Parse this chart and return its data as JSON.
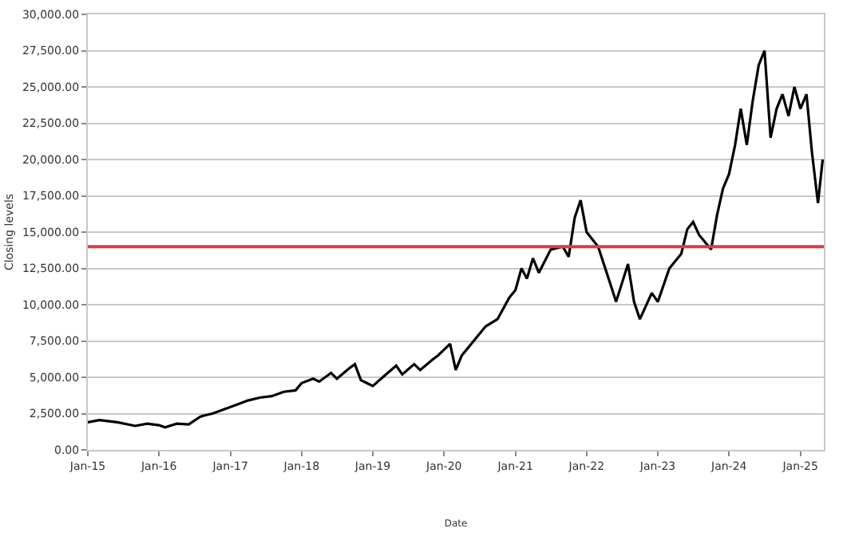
{
  "chart_data": {
    "type": "line",
    "xlabel": "Date",
    "ylabel": "Closing levels",
    "x": [
      "2015-01",
      "2015-03",
      "2015-06",
      "2015-09",
      "2015-11",
      "2016-01",
      "2016-02",
      "2016-04",
      "2016-06",
      "2016-08",
      "2016-10",
      "2016-12",
      "2017-02",
      "2017-04",
      "2017-06",
      "2017-08",
      "2017-10",
      "2017-12",
      "2018-01",
      "2018-03",
      "2018-04",
      "2018-06",
      "2018-07",
      "2018-09",
      "2018-10",
      "2018-11",
      "2018-12",
      "2019-01",
      "2019-03",
      "2019-05",
      "2019-06",
      "2019-08",
      "2019-09",
      "2019-11",
      "2019-12",
      "2020-02",
      "2020-03",
      "2020-04",
      "2020-06",
      "2020-08",
      "2020-10",
      "2020-12",
      "2021-01",
      "2021-02",
      "2021-03",
      "2021-04",
      "2021-05",
      "2021-07",
      "2021-09",
      "2021-10",
      "2021-11",
      "2021-12",
      "2022-01",
      "2022-03",
      "2022-05",
      "2022-06",
      "2022-08",
      "2022-09",
      "2022-10",
      "2022-12",
      "2023-01",
      "2023-03",
      "2023-05",
      "2023-06",
      "2023-07",
      "2023-08",
      "2023-10",
      "2023-11",
      "2023-12",
      "2024-01",
      "2024-02",
      "2024-03",
      "2024-04",
      "2024-05",
      "2024-06",
      "2024-07",
      "2024-08",
      "2024-09",
      "2024-10",
      "2024-11",
      "2024-12",
      "2025-01",
      "2025-02",
      "2025-03",
      "2025-04",
      "2025-04-25"
    ],
    "series": [
      {
        "color": "#000000",
        "values": [
          1900,
          2050,
          1900,
          1650,
          1800,
          1700,
          1550,
          1800,
          1750,
          2300,
          2500,
          2800,
          3100,
          3400,
          3600,
          3700,
          4000,
          4100,
          4600,
          4900,
          4700,
          5300,
          4900,
          5600,
          5900,
          4800,
          4600,
          4400,
          5100,
          5800,
          5200,
          5900,
          5500,
          6200,
          6500,
          7300,
          5500,
          6500,
          7500,
          8500,
          9000,
          10500,
          11000,
          12500,
          11800,
          13200,
          12200,
          13800,
          14000,
          13300,
          16000,
          17200,
          15000,
          14000,
          11500,
          10200,
          12800,
          10200,
          9000,
          10800,
          10200,
          12500,
          13500,
          15200,
          15700,
          14800,
          13800,
          16200,
          18000,
          19000,
          21000,
          23500,
          21000,
          24000,
          26500,
          27500,
          21500,
          23500,
          24500,
          23000,
          25000,
          23500,
          24500,
          20500,
          17000,
          20000
        ]
      }
    ],
    "xlim": [
      "2015-01-01",
      "2025-05-01"
    ],
    "xticks": [
      {
        "value": "2015-01-01",
        "label": "Jan-15"
      },
      {
        "value": "2016-01-01",
        "label": "Jan-16"
      },
      {
        "value": "2017-01-01",
        "label": "Jan-17"
      },
      {
        "value": "2018-01-01",
        "label": "Jan-18"
      },
      {
        "value": "2019-01-01",
        "label": "Jan-19"
      },
      {
        "value": "2020-01-01",
        "label": "Jan-20"
      },
      {
        "value": "2021-01-01",
        "label": "Jan-21"
      },
      {
        "value": "2022-01-01",
        "label": "Jan-22"
      },
      {
        "value": "2023-01-01",
        "label": "Jan-23"
      },
      {
        "value": "2024-01-01",
        "label": "Jan-24"
      },
      {
        "value": "2025-01-01",
        "label": "Jan-25"
      }
    ],
    "ylim": [
      0,
      30000
    ],
    "yticks": [
      {
        "value": 0,
        "label": "0.00"
      },
      {
        "value": 2500,
        "label": "2,500.00"
      },
      {
        "value": 5000,
        "label": "5,000.00"
      },
      {
        "value": 7500,
        "label": "7,500.00"
      },
      {
        "value": 10000,
        "label": "10,000.00"
      },
      {
        "value": 12500,
        "label": "12,500.00"
      },
      {
        "value": 15000,
        "label": "15,000.00"
      },
      {
        "value": 17500,
        "label": "17,500.00"
      },
      {
        "value": 20000,
        "label": "20,000.00"
      },
      {
        "value": 22500,
        "label": "22,500.00"
      },
      {
        "value": 25000,
        "label": "25,000.00"
      },
      {
        "value": 27500,
        "label": "27,500.00"
      },
      {
        "value": 30000,
        "label": "30,000.00"
      }
    ],
    "ref_lines": [
      {
        "axis": "y",
        "value": 14000,
        "label": null,
        "color": "#e03c3c"
      }
    ],
    "grid": "y",
    "marker": "none",
    "line_style": "solid"
  }
}
